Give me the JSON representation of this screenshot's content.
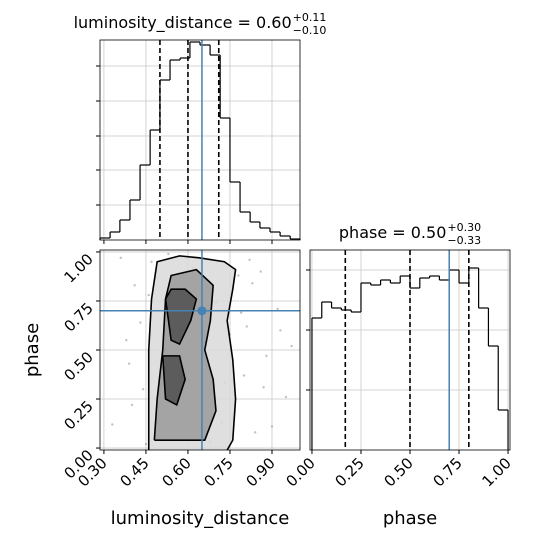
{
  "chart_data": [
    {
      "type": "histogram",
      "title": "luminosity_distance = 0.60",
      "title_upper": "+0.11",
      "title_lower": "−0.10",
      "bins": [
        0.286,
        0.322,
        0.357,
        0.393,
        0.429,
        0.465,
        0.5,
        0.536,
        0.572,
        0.607,
        0.643,
        0.679,
        0.715,
        0.75,
        0.786,
        0.822,
        0.857,
        0.893,
        0.929,
        0.965,
        1.0
      ],
      "values": [
        2,
        8,
        20,
        40,
        75,
        110,
        160,
        180,
        182,
        198,
        195,
        185,
        122,
        58,
        28,
        18,
        12,
        8,
        4,
        1
      ],
      "xlim": [
        0.286,
        1.0
      ],
      "ylim": [
        0,
        200
      ],
      "xticks": [
        0.3,
        0.45,
        0.6,
        0.75,
        0.9
      ],
      "yticks": [
        35,
        70,
        104,
        139,
        174
      ],
      "quantiles": [
        0.5,
        0.6,
        0.71
      ],
      "truth": 0.65,
      "color": "#000000",
      "truth_color": "#4682b4",
      "grid": true
    },
    {
      "type": "contour",
      "xlabel": "luminosity_distance",
      "ylabel": "phase",
      "xlim": [
        0.286,
        1.0
      ],
      "ylim": [
        -0.01,
        1.01
      ],
      "xticks": [
        {
          "value": 0.3,
          "label": "0.30"
        },
        {
          "value": 0.45,
          "label": "0.45"
        },
        {
          "value": 0.6,
          "label": "0.60"
        },
        {
          "value": 0.75,
          "label": "0.75"
        },
        {
          "value": 0.9,
          "label": "0.90"
        }
      ],
      "yticks": [
        {
          "value": 0,
          "label": "0.00"
        },
        {
          "value": 0.25,
          "label": "0.25"
        },
        {
          "value": 0.5,
          "label": "0.50"
        },
        {
          "value": 0.75,
          "label": "0.75"
        },
        {
          "value": 1,
          "label": "1.00"
        }
      ],
      "points": {
        "x": [
          0.33,
          0.38,
          0.41,
          0.44,
          0.47,
          0.52,
          0.55,
          0.58,
          0.62,
          0.66,
          0.7,
          0.73,
          0.78,
          0.81,
          0.84,
          0.88,
          0.92,
          0.95,
          0.36,
          0.43,
          0.49,
          0.57,
          0.68,
          0.75,
          0.8,
          0.86,
          0.9,
          0.97,
          0.4,
          0.46,
          0.53,
          0.64,
          0.72,
          0.79,
          0.83,
          0.87,
          0.93,
          0.39,
          0.45,
          0.82
        ],
        "y": [
          0.12,
          0.55,
          0.83,
          0.3,
          0.95,
          0.05,
          0.67,
          0.41,
          0.92,
          0.18,
          0.74,
          0.33,
          0.88,
          0.62,
          0.08,
          0.47,
          0.71,
          0.26,
          0.97,
          0.64,
          0.15,
          0.28,
          0.03,
          0.58,
          0.37,
          0.9,
          0.11,
          0.52,
          0.22,
          0.78,
          0.99,
          0.45,
          0.13,
          0.69,
          0.84,
          0.31,
          0.6,
          0.43,
          0.02,
          0.96
        ]
      },
      "contours": [
        {
          "fill": "#d9d9d9",
          "x": [
            0.46,
            0.46,
            0.46,
            0.47,
            0.49,
            0.57,
            0.64,
            0.73,
            0.77,
            0.76,
            0.74,
            0.76,
            0.77,
            0.76,
            0.74
          ],
          "y": [
            -0.01,
            0.25,
            0.5,
            0.76,
            0.95,
            0.98,
            0.97,
            0.95,
            0.91,
            0.81,
            0.65,
            0.45,
            0.25,
            0.04,
            -0.01
          ]
        },
        {
          "fill": "#9a9a9a",
          "x": [
            0.48,
            0.49,
            0.51,
            0.52,
            0.54,
            0.63,
            0.69,
            0.68,
            0.66,
            0.69,
            0.7,
            0.66,
            0.48
          ],
          "y": [
            0.04,
            0.25,
            0.5,
            0.76,
            0.88,
            0.91,
            0.83,
            0.65,
            0.5,
            0.35,
            0.19,
            0.04,
            0.04
          ]
        },
        {
          "fill": "#505050",
          "x": [
            0.52,
            0.54,
            0.57,
            0.61,
            0.63,
            0.59,
            0.54,
            0.52
          ],
          "y": [
            0.76,
            0.55,
            0.53,
            0.65,
            0.76,
            0.81,
            0.81,
            0.76
          ]
        },
        {
          "fill": "#505050",
          "x": [
            0.51,
            0.52,
            0.56,
            0.59,
            0.57,
            0.51
          ],
          "y": [
            0.47,
            0.25,
            0.22,
            0.35,
            0.47,
            0.47
          ]
        }
      ],
      "truth": [
        0.65,
        0.7
      ],
      "truth_color": "#4682b4",
      "grid": true
    },
    {
      "type": "histogram",
      "title": "phase = 0.50",
      "title_upper": "+0.30",
      "title_lower": "−0.33",
      "xlabel": "phase",
      "bins": [
        0,
        0.05,
        0.1,
        0.15,
        0.2,
        0.25,
        0.3,
        0.35,
        0.4,
        0.45,
        0.5,
        0.55,
        0.6,
        0.65,
        0.7,
        0.75,
        0.8,
        0.85,
        0.9,
        0.95,
        1.0
      ],
      "values": [
        132,
        148,
        142,
        140,
        138,
        167,
        165,
        170,
        167,
        174,
        162,
        172,
        174,
        170,
        180,
        167,
        182,
        142,
        104,
        40
      ],
      "xlim": [
        -0.01,
        1.01
      ],
      "ylim": [
        0,
        200
      ],
      "xticks": [
        {
          "value": 0,
          "label": "0.00"
        },
        {
          "value": 0.25,
          "label": "0.25"
        },
        {
          "value": 0.5,
          "label": "0.50"
        },
        {
          "value": 0.75,
          "label": "0.75"
        },
        {
          "value": 1,
          "label": "1.00"
        }
      ],
      "yticks": [
        60,
        120,
        180
      ],
      "quantiles": [
        0.17,
        0.5,
        0.8
      ],
      "truth": 0.7,
      "color": "#000000",
      "truth_color": "#4682b4",
      "grid": true
    }
  ]
}
